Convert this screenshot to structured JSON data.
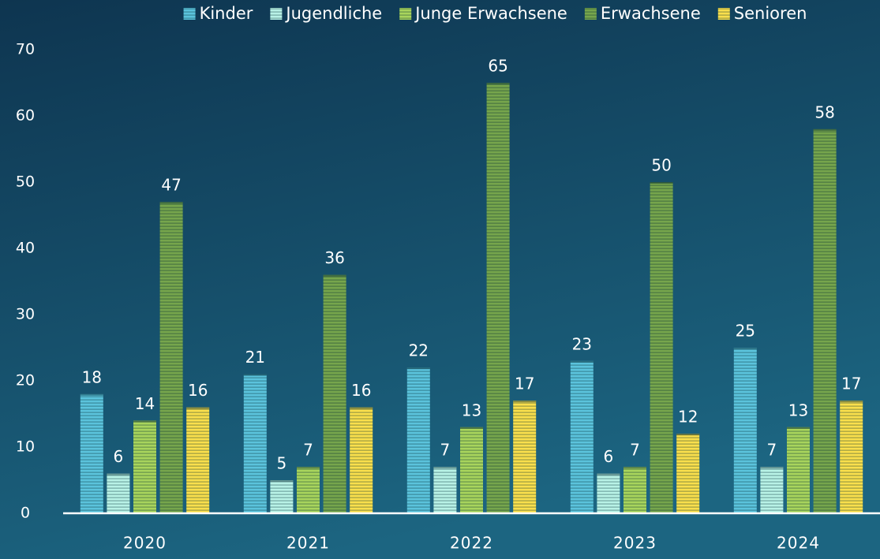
{
  "chart_data": {
    "type": "bar",
    "categories": [
      "2020",
      "2021",
      "2022",
      "2023",
      "2024"
    ],
    "series": [
      {
        "name": "Kinder",
        "color": "#5bc3dc",
        "values": [
          18,
          21,
          22,
          23,
          25
        ]
      },
      {
        "name": "Jugendliche",
        "color": "#b8f2e6",
        "values": [
          6,
          5,
          7,
          6,
          7
        ]
      },
      {
        "name": "Junge Erwachsene",
        "color": "#a8d45c",
        "values": [
          14,
          7,
          13,
          7,
          13
        ]
      },
      {
        "name": "Erwachsene",
        "color": "#76a54c",
        "values": [
          47,
          36,
          65,
          50,
          58
        ]
      },
      {
        "name": "Senioren",
        "color": "#f9df4c",
        "values": [
          16,
          16,
          17,
          12,
          17
        ]
      }
    ],
    "ylim": [
      0,
      70
    ],
    "yticks": [
      0,
      10,
      20,
      30,
      40,
      50,
      60,
      70
    ],
    "grid": false,
    "legend": "top"
  }
}
